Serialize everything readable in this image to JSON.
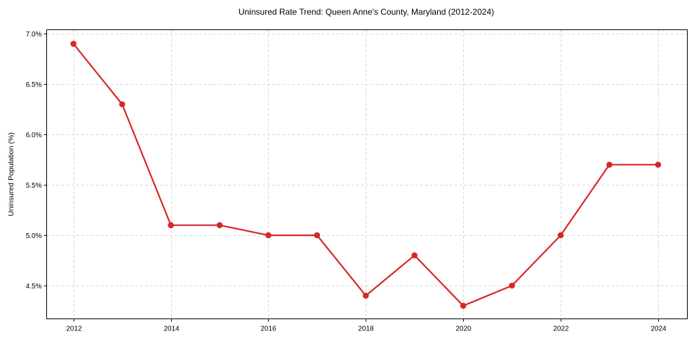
{
  "chart_data": {
    "type": "line",
    "title": "Uninsured Rate Trend: Queen Anne's County, Maryland (2012-2024)",
    "xlabel": "",
    "ylabel": "Uninsured Population (%)",
    "x": [
      2012,
      2013,
      2014,
      2015,
      2016,
      2017,
      2018,
      2019,
      2020,
      2021,
      2022,
      2023,
      2024
    ],
    "series": [
      {
        "name": "Uninsured Rate",
        "color": "#d62728",
        "values": [
          6.9,
          6.3,
          5.1,
          5.1,
          5.0,
          5.0,
          4.4,
          4.8,
          4.3,
          4.5,
          5.0,
          5.7,
          5.7
        ]
      }
    ],
    "x_ticks": [
      2012,
      2014,
      2016,
      2018,
      2020,
      2022,
      2024
    ],
    "y_ticks": [
      4.5,
      5.0,
      5.5,
      6.0,
      6.5,
      7.0
    ],
    "y_tick_labels": [
      "4.5%",
      "5.0%",
      "5.5%",
      "6.0%",
      "6.5%",
      "7.0%"
    ],
    "xlim": [
      2011.45,
      2024.6
    ],
    "ylim": [
      4.17,
      7.04
    ],
    "grid": true,
    "legend": false
  }
}
